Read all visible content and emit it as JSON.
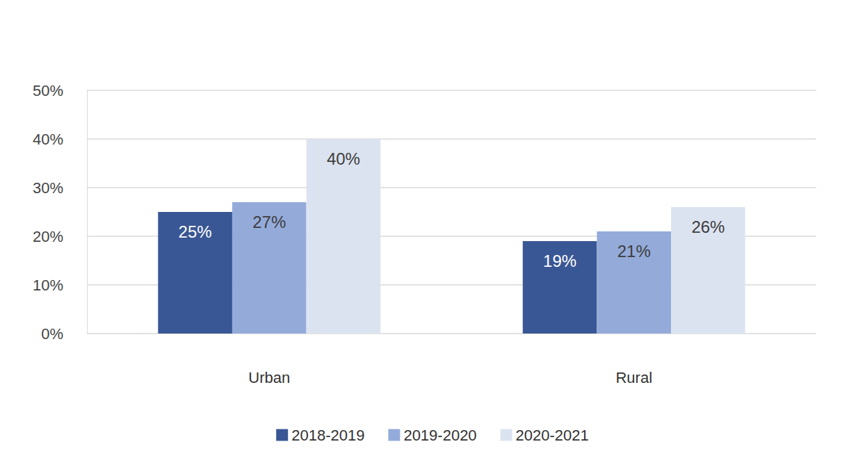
{
  "chart_data": {
    "type": "bar",
    "categories": [
      "Urban",
      "Rural"
    ],
    "series": [
      {
        "name": "2018-2019",
        "color": "#3a5795",
        "values": [
          25,
          19
        ],
        "value_labels": [
          "25%",
          "19%"
        ]
      },
      {
        "name": "2019-2020",
        "color": "#94abda",
        "values": [
          27,
          21
        ],
        "value_labels": [
          "27%",
          "21%"
        ]
      },
      {
        "name": "2020-2021",
        "color": "#dce3f0",
        "values": [
          40,
          26
        ],
        "value_labels": [
          "40%",
          "26%"
        ]
      }
    ],
    "ylim": [
      0,
      50
    ],
    "yticks": [
      {
        "value": 0,
        "label": "0%"
      },
      {
        "value": 10,
        "label": "10%"
      },
      {
        "value": 20,
        "label": "20%"
      },
      {
        "value": 30,
        "label": "30%"
      },
      {
        "value": 40,
        "label": "40%"
      },
      {
        "value": 50,
        "label": "50%"
      }
    ],
    "grid": true,
    "legend": "bottom",
    "data_labels": true
  }
}
